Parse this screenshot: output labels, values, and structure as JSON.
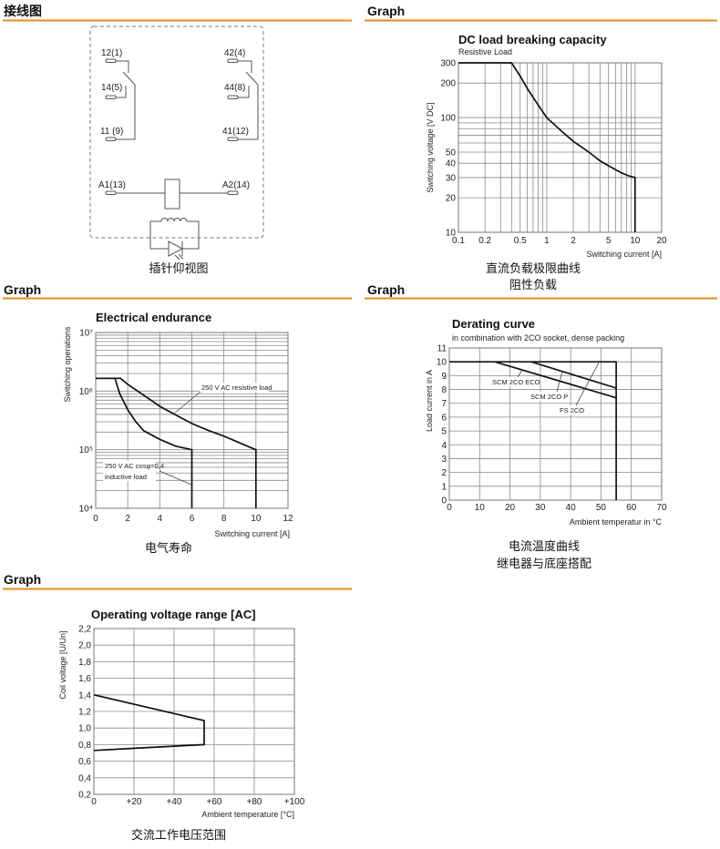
{
  "sections": {
    "wiring_header": "接线图",
    "graph_header_1": "Graph",
    "graph_header_2": "Graph",
    "graph_header_3": "Graph",
    "graph_header_4": "Graph"
  },
  "wiring": {
    "pins": {
      "p12": "12(1)",
      "p14": "14(5)",
      "p11": "11 (9)",
      "p42": "42(4)",
      "p44": "44(8)",
      "p41": "41(12)",
      "a1": "A1(13)",
      "a2": "A2(14)"
    },
    "caption": "插针仰视图"
  },
  "colors": {
    "accent": "#e8891c",
    "curve": "#111111",
    "grid": "#8a8a8a"
  },
  "captions": {
    "dc": [
      "直流负载极限曲线",
      "阻性负载"
    ],
    "endurance": [
      "电气寿命"
    ],
    "derating": [
      "电流温度曲线",
      "继电器与底座搭配"
    ],
    "operating": [
      "交流工作电压范围"
    ]
  },
  "chart_data": [
    {
      "type": "line",
      "title": "DC load breaking capacity",
      "subtitle": "Resistive Load",
      "xlabel": "Switching current [A]",
      "ylabel": "Switching voltage [V DC]",
      "xscale": "log",
      "yscale": "log",
      "xlim": [
        0.1,
        20
      ],
      "ylim": [
        10,
        300
      ],
      "xgrid": [
        0.1,
        0.2,
        0.3,
        0.4,
        0.5,
        0.6,
        0.7,
        0.8,
        0.9,
        1,
        2,
        3,
        4,
        5,
        6,
        7,
        8,
        9,
        10,
        20
      ],
      "ygrid": [
        10,
        20,
        30,
        40,
        50,
        60,
        70,
        80,
        90,
        100,
        200,
        300
      ],
      "xticks": [
        {
          "v": 0.1,
          "l": "0.1"
        },
        {
          "v": 0.2,
          "l": "0.2"
        },
        {
          "v": 0.5,
          "l": "0.5"
        },
        {
          "v": 1,
          "l": "1"
        },
        {
          "v": 2,
          "l": "2"
        },
        {
          "v": 5,
          "l": "5"
        },
        {
          "v": 10,
          "l": "10"
        },
        {
          "v": 20,
          "l": "20"
        }
      ],
      "yticks": [
        {
          "v": 10,
          "l": "10"
        },
        {
          "v": 20,
          "l": "20"
        },
        {
          "v": 30,
          "l": "30"
        },
        {
          "v": 40,
          "l": "40"
        },
        {
          "v": 50,
          "l": "50"
        },
        {
          "v": 100,
          "l": "100"
        },
        {
          "v": 200,
          "l": "200"
        },
        {
          "v": 300,
          "l": "300"
        }
      ],
      "series": [
        {
          "name": "Resistive Load",
          "points": [
            [
              0.1,
              300
            ],
            [
              0.4,
              300
            ],
            [
              0.5,
              230
            ],
            [
              0.6,
              180
            ],
            [
              0.7,
              150
            ],
            [
              0.85,
              120
            ],
            [
              1,
              100
            ],
            [
              1.5,
              75
            ],
            [
              2,
              62
            ],
            [
              3,
              50
            ],
            [
              4,
              42
            ],
            [
              5,
              38
            ],
            [
              7,
              33
            ],
            [
              8.5,
              31
            ],
            [
              10,
              30
            ],
            [
              10,
              10
            ]
          ]
        }
      ]
    },
    {
      "type": "line",
      "title": "Electrical endurance",
      "xlabel": "Switching current [A]",
      "ylabel": "Switching operations",
      "xscale": "linear",
      "yscale": "log",
      "xlim": [
        0,
        12
      ],
      "ylim": [
        10000,
        10000000
      ],
      "xgrid": [
        0,
        2,
        4,
        6,
        8,
        10,
        12
      ],
      "ygrid": [
        10000,
        20000,
        30000,
        40000,
        50000,
        60000,
        70000,
        80000,
        90000,
        100000,
        200000,
        300000,
        400000,
        500000,
        600000,
        700000,
        800000,
        900000,
        1000000,
        2000000,
        3000000,
        4000000,
        5000000,
        6000000,
        7000000,
        8000000,
        9000000,
        10000000
      ],
      "xticks": [
        {
          "v": 0,
          "l": "0"
        },
        {
          "v": 2,
          "l": "2"
        },
        {
          "v": 4,
          "l": "4"
        },
        {
          "v": 6,
          "l": "6"
        },
        {
          "v": 8,
          "l": "8"
        },
        {
          "v": 10,
          "l": "10"
        },
        {
          "v": 12,
          "l": "12"
        }
      ],
      "yticks": [
        {
          "v": 10000,
          "l": "10⁴"
        },
        {
          "v": 100000,
          "l": "10⁵"
        },
        {
          "v": 1000000,
          "l": "10⁶"
        },
        {
          "v": 10000000,
          "l": "10⁷"
        }
      ],
      "annotations": [
        "250 V AC resistive load",
        "250 V AC cosφ=0,4",
        "inductive load"
      ],
      "series": [
        {
          "name": "250 V AC resistive load",
          "points": [
            [
              0,
              1650000
            ],
            [
              1.55,
              1650000
            ],
            [
              2,
              1300000
            ],
            [
              3,
              850000
            ],
            [
              4,
              550000
            ],
            [
              5,
              390000
            ],
            [
              6,
              280000
            ],
            [
              7,
              215000
            ],
            [
              8,
              170000
            ],
            [
              9,
              130000
            ],
            [
              10,
              100000
            ],
            [
              10,
              10000
            ]
          ]
        },
        {
          "name": "250 V AC cosφ=0,4 inductive load",
          "points": [
            [
              0,
              1650000
            ],
            [
              1.2,
              1650000
            ],
            [
              1.5,
              900000
            ],
            [
              2,
              480000
            ],
            [
              2.5,
              300000
            ],
            [
              3,
              210000
            ],
            [
              4,
              150000
            ],
            [
              5,
              115000
            ],
            [
              6,
              100000
            ],
            [
              6,
              10000
            ]
          ]
        }
      ]
    },
    {
      "type": "line",
      "title": "Derating curve",
      "subtitle": "in combination with 2CO socket, dense packing",
      "xlabel": "Ambient temperatur in °C",
      "ylabel": "Load  current in A",
      "xscale": "linear",
      "yscale": "linear",
      "xlim": [
        0,
        70
      ],
      "ylim": [
        0,
        11
      ],
      "xgrid": [
        0,
        10,
        20,
        30,
        40,
        50,
        60,
        70
      ],
      "ygrid": [
        0,
        1,
        2,
        3,
        4,
        5,
        6,
        7,
        8,
        9,
        10,
        11
      ],
      "xticks": [
        {
          "v": 0,
          "l": "0"
        },
        {
          "v": 10,
          "l": "10"
        },
        {
          "v": 20,
          "l": "20"
        },
        {
          "v": 30,
          "l": "30"
        },
        {
          "v": 40,
          "l": "40"
        },
        {
          "v": 50,
          "l": "50"
        },
        {
          "v": 60,
          "l": "60"
        },
        {
          "v": 70,
          "l": "70"
        }
      ],
      "yticks": [
        {
          "v": 0,
          "l": "0"
        },
        {
          "v": 1,
          "l": "1"
        },
        {
          "v": 2,
          "l": "2"
        },
        {
          "v": 3,
          "l": "3"
        },
        {
          "v": 4,
          "l": "4"
        },
        {
          "v": 5,
          "l": "5"
        },
        {
          "v": 6,
          "l": "6"
        },
        {
          "v": 7,
          "l": "7"
        },
        {
          "v": 8,
          "l": "8"
        },
        {
          "v": 9,
          "l": "9"
        },
        {
          "v": 10,
          "l": "10"
        },
        {
          "v": 11,
          "l": "11"
        }
      ],
      "annotations": [
        "SCM 2CO ECO",
        "SCM 2CO P",
        "FS 2CO"
      ],
      "series": [
        {
          "name": "FS 2CO",
          "points": [
            [
              0,
              10
            ],
            [
              55,
              10
            ],
            [
              55,
              0
            ]
          ]
        },
        {
          "name": "SCM 2CO ECO",
          "points": [
            [
              15,
              10
            ],
            [
              55,
              7.4
            ]
          ]
        },
        {
          "name": "SCM 2CO P",
          "points": [
            [
              27,
              10
            ],
            [
              55,
              8.1
            ]
          ]
        }
      ]
    },
    {
      "type": "line",
      "title": "Operating voltage range [AC]",
      "xlabel": "Ambient temperature [°C]",
      "ylabel": "Coil voltage [U/Un]",
      "xscale": "linear",
      "yscale": "linear",
      "xlim": [
        0,
        100
      ],
      "ylim": [
        0.2,
        2.2
      ],
      "xgrid": [
        0,
        20,
        40,
        60,
        80,
        100
      ],
      "ygrid": [
        0.2,
        0.4,
        0.6,
        0.8,
        1.0,
        1.2,
        1.4,
        1.6,
        1.8,
        2.0,
        2.2
      ],
      "xticks": [
        {
          "v": 0,
          "l": "0"
        },
        {
          "v": 20,
          "l": "+20"
        },
        {
          "v": 40,
          "l": "+40"
        },
        {
          "v": 60,
          "l": "+60"
        },
        {
          "v": 80,
          "l": "+80"
        },
        {
          "v": 100,
          "l": "+100"
        }
      ],
      "yticks": [
        {
          "v": 0.2,
          "l": "0,2"
        },
        {
          "v": 0.4,
          "l": "0,4"
        },
        {
          "v": 0.6,
          "l": "0,6"
        },
        {
          "v": 0.8,
          "l": "0,8"
        },
        {
          "v": 1.0,
          "l": "1,0"
        },
        {
          "v": 1.2,
          "l": "1,2"
        },
        {
          "v": 1.4,
          "l": "1,4"
        },
        {
          "v": 1.6,
          "l": "1,6"
        },
        {
          "v": 1.8,
          "l": "1,8"
        },
        {
          "v": 2.0,
          "l": "2,0"
        },
        {
          "v": 2.2,
          "l": "2,2"
        }
      ],
      "series": [
        {
          "name": "Operating range",
          "points": [
            [
              0,
              1.4
            ],
            [
              55,
              1.09
            ],
            [
              55,
              0.8
            ],
            [
              0,
              0.73
            ]
          ]
        }
      ]
    }
  ]
}
